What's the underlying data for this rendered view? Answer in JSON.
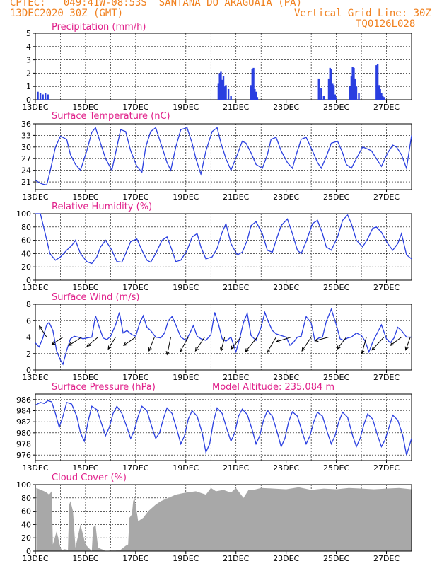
{
  "header": {
    "line1": "CPTEC:   049:41W-08:53S  SANTANA DO ARAGUAIA (PA)",
    "line2": "13DEC2020 30Z (GMT)",
    "grid_note": "Vertical Grid Line: 30Z",
    "code": "TQ0126L028"
  },
  "colors": {
    "header": "#f0801e",
    "title": "#e0208a",
    "line": "#2a3fe0",
    "bar": "#2a3fe0",
    "cloud": "#a8a8a8",
    "grid": "#000000"
  },
  "x_axis": {
    "start": "13DEC2020 06Z",
    "end": "28DEC2020 06Z",
    "unit": "days",
    "tick_labels": [
      "13DEC",
      "15DEC",
      "17DEC",
      "19DEC",
      "21DEC",
      "23DEC",
      "25DEC",
      "27DEC"
    ],
    "tick_days": [
      0,
      2,
      4,
      6,
      8,
      10,
      12,
      14
    ]
  },
  "chart_data": [
    {
      "id": "precip",
      "type": "bar",
      "title": "Precipitation (mm/h)",
      "ylim": [
        0,
        5
      ],
      "yticks": [
        0,
        1,
        2,
        3,
        4,
        5
      ],
      "x": [
        0.1,
        0.2,
        0.3,
        0.4,
        0.5,
        7.3,
        7.35,
        7.4,
        7.45,
        7.5,
        7.55,
        7.6,
        7.7,
        7.8,
        8.6,
        8.65,
        8.7,
        8.75,
        8.8,
        8.85,
        11.3,
        11.4,
        11.5,
        11.7,
        11.75,
        11.8,
        11.85,
        11.9,
        11.95,
        12.0,
        12.55,
        12.6,
        12.65,
        12.7,
        12.75,
        12.8,
        12.9,
        13.6,
        13.65,
        13.7,
        13.75,
        13.8,
        13.85,
        13.9
      ],
      "values": [
        0.6,
        0.5,
        0.4,
        0.5,
        0.4,
        1.2,
        2.0,
        2.1,
        1.5,
        1.8,
        1.0,
        1.1,
        0.8,
        0.3,
        1.1,
        2.3,
        2.4,
        0.8,
        0.6,
        0.2,
        1.6,
        0.9,
        0.3,
        1.6,
        2.4,
        2.3,
        1.2,
        1.1,
        0.4,
        0.2,
        1.0,
        1.8,
        2.5,
        2.4,
        1.6,
        1.0,
        0.5,
        2.6,
        2.7,
        1.1,
        0.8,
        0.5,
        0.3,
        0.2
      ]
    },
    {
      "id": "temp",
      "type": "line",
      "title": "Surface Temperature (nC)",
      "ylim": [
        19,
        36
      ],
      "yticks": [
        21,
        24,
        27,
        30,
        33,
        36
      ],
      "x": [
        0,
        0.15,
        0.3,
        0.45,
        0.58,
        0.8,
        1.0,
        1.25,
        1.4,
        1.6,
        1.8,
        2.05,
        2.25,
        2.4,
        2.6,
        2.8,
        3.05,
        3.25,
        3.4,
        3.6,
        3.8,
        4.05,
        4.25,
        4.4,
        4.6,
        4.8,
        5.05,
        5.25,
        5.4,
        5.6,
        5.8,
        6.05,
        6.25,
        6.4,
        6.6,
        6.8,
        7.05,
        7.25,
        7.4,
        7.6,
        7.8,
        8.05,
        8.25,
        8.4,
        8.6,
        8.8,
        9.05,
        9.25,
        9.4,
        9.6,
        9.8,
        10.05,
        10.25,
        10.4,
        10.6,
        10.8,
        11.05,
        11.25,
        11.4,
        11.6,
        11.8,
        12.05,
        12.25,
        12.4,
        12.6,
        12.8,
        13.05,
        13.25,
        13.4,
        13.6,
        13.8,
        14.05,
        14.25,
        14.4,
        14.6,
        14.8,
        15.0
      ],
      "values": [
        21.5,
        20.8,
        20.4,
        20.2,
        23.5,
        30,
        32.8,
        32,
        28,
        25.5,
        24,
        29,
        33.8,
        35,
        31,
        27,
        24,
        30,
        34.5,
        34,
        29,
        25,
        23.5,
        30,
        34,
        35,
        30,
        26,
        24,
        30,
        34.5,
        35,
        31,
        27,
        23,
        29,
        34,
        35,
        31,
        27,
        24,
        28,
        31.5,
        31,
        28.5,
        25.5,
        24.5,
        28,
        32,
        32.5,
        29,
        26,
        24.5,
        28,
        32,
        32.5,
        29,
        26,
        24.5,
        27.5,
        31,
        31.5,
        28.5,
        25.5,
        24.5,
        27,
        30,
        29.5,
        29,
        27,
        25,
        28.5,
        30.5,
        30,
        28,
        24.5,
        33
      ]
    },
    {
      "id": "rh",
      "type": "line",
      "title": "Relative Humidity (%)",
      "ylim": [
        0,
        100
      ],
      "yticks": [
        0,
        20,
        40,
        60,
        80,
        100
      ],
      "x": [
        0,
        0.2,
        0.38,
        0.58,
        0.8,
        1.0,
        1.25,
        1.45,
        1.6,
        1.8,
        2.05,
        2.25,
        2.45,
        2.6,
        2.8,
        3.05,
        3.25,
        3.45,
        3.6,
        3.8,
        4.05,
        4.25,
        4.45,
        4.6,
        4.8,
        5.05,
        5.25,
        5.45,
        5.6,
        5.8,
        6.05,
        6.25,
        6.45,
        6.6,
        6.8,
        7.05,
        7.25,
        7.45,
        7.6,
        7.8,
        8.05,
        8.25,
        8.45,
        8.6,
        8.8,
        9.05,
        9.25,
        9.45,
        9.6,
        9.8,
        10.05,
        10.25,
        10.45,
        10.6,
        10.8,
        11.05,
        11.25,
        11.45,
        11.6,
        11.8,
        12.05,
        12.25,
        12.45,
        12.6,
        12.8,
        13.05,
        13.25,
        13.45,
        13.6,
        13.8,
        14.05,
        14.25,
        14.45,
        14.6,
        14.8,
        15.0
      ],
      "values": [
        100,
        100,
        72,
        40,
        30,
        35,
        45,
        52,
        60,
        40,
        28,
        25,
        35,
        50,
        60,
        45,
        28,
        27,
        40,
        58,
        62,
        45,
        30,
        27,
        40,
        60,
        65,
        45,
        28,
        30,
        45,
        65,
        70,
        50,
        32,
        35,
        48,
        72,
        85,
        55,
        38,
        42,
        60,
        82,
        88,
        70,
        45,
        42,
        60,
        82,
        92,
        70,
        45,
        40,
        58,
        85,
        90,
        70,
        50,
        45,
        65,
        90,
        98,
        85,
        60,
        50,
        62,
        78,
        80,
        72,
        55,
        45,
        55,
        70,
        38,
        32
      ]
    },
    {
      "id": "wind",
      "type": "line",
      "title": "Surface Wind (m/s)",
      "ylim": [
        0,
        8
      ],
      "yticks": [
        0,
        2,
        4,
        6,
        8
      ],
      "x": [
        0,
        0.15,
        0.3,
        0.45,
        0.55,
        0.7,
        0.85,
        1.0,
        1.1,
        1.25,
        1.4,
        1.55,
        1.7,
        1.9,
        2.05,
        2.25,
        2.4,
        2.55,
        2.7,
        2.85,
        3.0,
        3.2,
        3.35,
        3.5,
        3.65,
        3.85,
        4.0,
        4.15,
        4.3,
        4.45,
        4.6,
        4.8,
        5.0,
        5.15,
        5.3,
        5.45,
        5.6,
        5.8,
        6.0,
        6.15,
        6.3,
        6.45,
        6.6,
        6.8,
        7.0,
        7.15,
        7.3,
        7.45,
        7.6,
        7.8,
        8.0,
        8.15,
        8.3,
        8.45,
        8.6,
        8.8,
        9.0,
        9.15,
        9.3,
        9.45,
        9.6,
        9.8,
        10.0,
        10.15,
        10.3,
        10.45,
        10.6,
        10.8,
        11.0,
        11.15,
        11.3,
        11.45,
        11.6,
        11.8,
        12.0,
        12.15,
        12.3,
        12.45,
        12.6,
        12.8,
        13.0,
        13.15,
        13.3,
        13.45,
        13.6,
        13.8,
        14.0,
        14.15,
        14.3,
        14.45,
        14.6,
        14.8,
        15.0
      ],
      "values": [
        3.3,
        2.8,
        3.9,
        5.5,
        5.8,
        4.8,
        2.3,
        1.2,
        0.7,
        2.4,
        3.8,
        4.1,
        4.0,
        3.8,
        3.9,
        4.0,
        6.6,
        5.2,
        3.9,
        3.7,
        4.1,
        5.5,
        7.0,
        4.5,
        4.8,
        4.3,
        4.1,
        5.6,
        6.6,
        5.2,
        4.8,
        4.0,
        3.9,
        4.5,
        6.0,
        6.5,
        5.5,
        4.0,
        3.6,
        4.4,
        5.4,
        4.1,
        3.8,
        3.6,
        4.3,
        7.0,
        5.6,
        3.8,
        3.5,
        4.0,
        2.2,
        3.9,
        5.8,
        6.9,
        4.2,
        3.6,
        5.2,
        7.0,
        5.8,
        4.8,
        4.4,
        4.2,
        4.0,
        3.0,
        3.4,
        4.0,
        4.1,
        6.5,
        5.7,
        3.5,
        3.9,
        4.0,
        5.9,
        7.4,
        5.5,
        3.8,
        3.6,
        3.9,
        4.0,
        4.5,
        4.2,
        3.5,
        2.2,
        3.4,
        4.3,
        5.5,
        3.8,
        3.3,
        3.9,
        5.2,
        4.8,
        4.0,
        4.0
      ],
      "vectors": [
        {
          "x": 0.45,
          "u": -0.8,
          "v": 1.2
        },
        {
          "x": 1.1,
          "u": -1.2,
          "v": -0.8
        },
        {
          "x": 1.85,
          "u": -1.4,
          "v": -0.9
        },
        {
          "x": 2.5,
          "u": -1.2,
          "v": -1.0
        },
        {
          "x": 3.2,
          "u": -0.8,
          "v": -1.3
        },
        {
          "x": 4.0,
          "u": -1.3,
          "v": -0.9
        },
        {
          "x": 4.75,
          "u": -0.6,
          "v": -1.5
        },
        {
          "x": 5.4,
          "u": -0.4,
          "v": -1.9
        },
        {
          "x": 6.1,
          "u": -0.9,
          "v": -1.6
        },
        {
          "x": 6.75,
          "u": -1.0,
          "v": -1.5
        },
        {
          "x": 7.55,
          "u": -0.4,
          "v": -1.5
        },
        {
          "x": 8.2,
          "u": -1.1,
          "v": -1.3
        },
        {
          "x": 8.85,
          "u": -1.3,
          "v": -1.6
        },
        {
          "x": 9.6,
          "u": -1.0,
          "v": -1.7
        },
        {
          "x": 10.2,
          "u": -1.6,
          "v": -0.5
        },
        {
          "x": 11.0,
          "u": -1.0,
          "v": -1.5
        },
        {
          "x": 11.7,
          "u": -1.5,
          "v": -0.4
        },
        {
          "x": 12.4,
          "u": -1.0,
          "v": -1.3
        },
        {
          "x": 13.2,
          "u": -0.5,
          "v": -1.8
        },
        {
          "x": 13.9,
          "u": -1.3,
          "v": -1.4
        },
        {
          "x": 14.6,
          "u": -1.2,
          "v": -0.9
        },
        {
          "x": 14.95,
          "u": -0.5,
          "v": -1.4
        }
      ]
    },
    {
      "id": "pres",
      "type": "line",
      "title": "Surface Pressure (hPa)",
      "extra_label": "Model Altitude: 235.084 m",
      "ylim": [
        975,
        987
      ],
      "yticks": [
        976,
        978,
        980,
        982,
        984,
        986
      ],
      "x": [
        0,
        0.2,
        0.35,
        0.5,
        0.65,
        0.8,
        0.95,
        1.1,
        1.25,
        1.45,
        1.65,
        1.8,
        1.95,
        2.1,
        2.25,
        2.45,
        2.65,
        2.8,
        2.95,
        3.1,
        3.25,
        3.45,
        3.65,
        3.8,
        3.95,
        4.1,
        4.25,
        4.45,
        4.65,
        4.8,
        4.95,
        5.1,
        5.25,
        5.45,
        5.65,
        5.8,
        5.95,
        6.1,
        6.25,
        6.45,
        6.65,
        6.8,
        6.95,
        7.1,
        7.25,
        7.45,
        7.65,
        7.8,
        7.95,
        8.1,
        8.25,
        8.45,
        8.65,
        8.8,
        8.95,
        9.1,
        9.25,
        9.45,
        9.65,
        9.8,
        9.95,
        10.1,
        10.25,
        10.45,
        10.65,
        10.8,
        10.95,
        11.1,
        11.25,
        11.45,
        11.65,
        11.8,
        11.95,
        12.1,
        12.25,
        12.45,
        12.65,
        12.8,
        12.95,
        13.1,
        13.25,
        13.45,
        13.65,
        13.8,
        13.95,
        14.1,
        14.25,
        14.45,
        14.65,
        14.8,
        15.0
      ],
      "values": [
        985,
        985.5,
        985.3,
        985.8,
        985.6,
        983.5,
        981,
        983,
        985.5,
        985.2,
        983,
        980,
        978.5,
        982,
        984.8,
        984.2,
        981.5,
        979.5,
        981,
        983.5,
        984.8,
        983.5,
        981,
        979,
        980.5,
        983,
        984.8,
        984,
        981,
        979,
        980,
        982.5,
        984.5,
        983.5,
        980.5,
        978,
        979.5,
        982.5,
        984,
        983,
        980,
        976.5,
        978,
        982,
        984.5,
        983.5,
        980.5,
        978.5,
        980,
        983,
        984.3,
        983.3,
        980.5,
        978,
        979.5,
        982.3,
        984,
        983,
        980,
        977.5,
        979,
        982,
        983.8,
        983,
        980,
        978,
        979.5,
        982,
        983.7,
        983,
        980,
        978,
        979.5,
        982,
        983.7,
        982.8,
        979.5,
        977.5,
        979,
        981.5,
        983.4,
        982.5,
        979.5,
        977.5,
        978.8,
        981,
        983.2,
        982.3,
        979.5,
        976,
        979
      ]
    },
    {
      "id": "cloud",
      "type": "area",
      "title": "Cloud Cover (%)",
      "ylim": [
        0,
        100
      ],
      "yticks": [
        0,
        20,
        40,
        60,
        80,
        100
      ],
      "x": [
        0,
        0.04,
        0.04,
        0.35,
        0.45,
        0.55,
        0.65,
        0.7,
        0.85,
        1.0,
        1.05,
        1.1,
        1.15,
        1.3,
        1.35,
        1.4,
        1.5,
        1.6,
        1.8,
        2.0,
        2.25,
        2.3,
        2.4,
        2.5,
        2.7,
        2.8,
        3.0,
        3.2,
        3.4,
        3.6,
        3.7,
        3.75,
        3.85,
        3.9,
        3.95,
        4.0,
        4.1,
        4.3,
        4.5,
        4.8,
        5.0,
        5.3,
        5.6,
        6.0,
        6.4,
        6.8,
        7.0,
        7.2,
        7.5,
        7.8,
        8.0,
        8.3,
        8.5,
        8.7,
        9.0,
        9.5,
        10.0,
        10.5,
        11.0,
        11.5,
        12.0,
        12.5,
        13.0,
        13.5,
        14.0,
        14.5,
        15.0
      ],
      "values": [
        0,
        0,
        95,
        90,
        88,
        85,
        90,
        10,
        30,
        5,
        2,
        2,
        3,
        2,
        70,
        75,
        60,
        5,
        40,
        10,
        0,
        35,
        40,
        5,
        2,
        0,
        1,
        1,
        2,
        8,
        10,
        50,
        55,
        75,
        80,
        70,
        45,
        50,
        60,
        70,
        75,
        80,
        85,
        88,
        90,
        85,
        95,
        90,
        92,
        88,
        95,
        80,
        92,
        92,
        95,
        94,
        93,
        96,
        92,
        94,
        93,
        95,
        94,
        93,
        94,
        95,
        93
      ]
    }
  ]
}
